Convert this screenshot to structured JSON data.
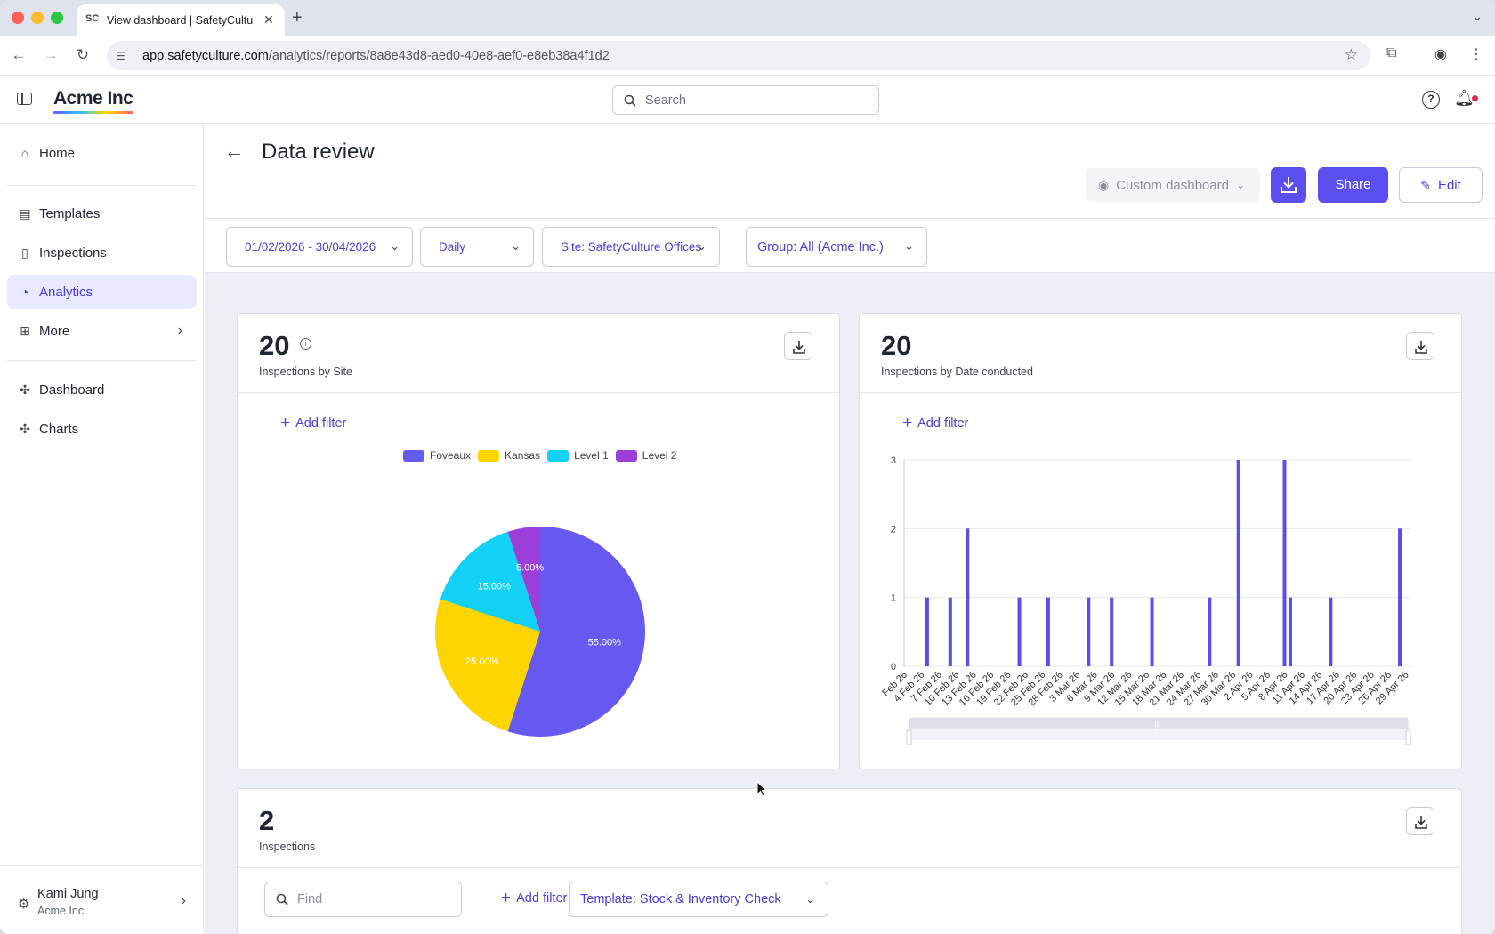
{
  "browser": {
    "tab_title": "View dashboard | SafetyCultu",
    "tab_favicon": "SC",
    "url_host": "app.safetyculture.com",
    "url_path": "/analytics/reports/8a8e43d8-aed0-40e8-aef0-e8eb38a4f1d2"
  },
  "header": {
    "brand": "Acme Inc",
    "search_placeholder": "Search"
  },
  "sidebar": {
    "items": [
      {
        "label": "Home",
        "icon": "home-icon"
      },
      {
        "label": "Templates",
        "icon": "templates-icon"
      },
      {
        "label": "Inspections",
        "icon": "clipboard-icon"
      },
      {
        "label": "Analytics",
        "icon": "analytics-icon",
        "active": true
      },
      {
        "label": "More",
        "icon": "grid-icon"
      },
      {
        "label": "Dashboard",
        "icon": "puzzle-icon"
      },
      {
        "label": "Charts",
        "icon": "puzzle-icon"
      }
    ],
    "user": {
      "name": "Kami Jung",
      "org": "Acme Inc."
    }
  },
  "page": {
    "title": "Data review",
    "custom_dashboard": "Custom dashboard",
    "share_label": "Share",
    "edit_label": "Edit"
  },
  "filters": {
    "date_range": "01/02/2026 - 30/04/2026",
    "interval": "Daily",
    "site": "Site: SafetyCulture Offices",
    "group": "Group: All (Acme Inc.)"
  },
  "cards": {
    "by_site": {
      "count": "20",
      "subtitle": "Inspections by Site",
      "add_filter": "Add filter"
    },
    "by_date": {
      "count": "20",
      "subtitle": "Inspections by Date conducted",
      "add_filter": "Add filter"
    },
    "inspections": {
      "count": "2",
      "subtitle": "Inspections",
      "find_placeholder": "Find",
      "add_filter": "Add filter",
      "template": "Template: Stock & Inventory Check"
    }
  },
  "colors": {
    "accent": "#5a4fee",
    "foveaux": "#6559ef",
    "kansas": "#ffd500",
    "level1": "#13d1f6",
    "level2": "#9b3fd9"
  },
  "chart_data": [
    {
      "type": "pie",
      "series": [
        {
          "name": "Foveaux",
          "value": 55.0,
          "label": "55.00%"
        },
        {
          "name": "Kansas",
          "value": 25.0,
          "label": "25.00%"
        },
        {
          "name": "Level 1",
          "value": 15.0,
          "label": "15.00%"
        },
        {
          "name": "Level 2",
          "value": 5.0,
          "label": "5.00%"
        }
      ],
      "legend": "top-center"
    },
    {
      "type": "bar",
      "ylim": [
        0,
        3
      ],
      "yticks": [
        "0",
        "1",
        "2",
        "3"
      ],
      "xticks": [
        "Feb 26",
        "4 Feb 26",
        "7 Feb 26",
        "10 Feb 26",
        "13 Feb 26",
        "16 Feb 26",
        "19 Feb 26",
        "22 Feb 26",
        "25 Feb 26",
        "28 Feb 26",
        "3 Mar 26",
        "6 Mar 26",
        "9 Mar 26",
        "12 Mar 26",
        "15 Mar 26",
        "18 Mar 26",
        "21 Mar 26",
        "24 Mar 26",
        "27 Mar 26",
        "30 Mar 26",
        "2 Apr 26",
        "5 Apr 26",
        "8 Apr 26",
        "11 Apr 26",
        "14 Apr 26",
        "17 Apr 26",
        "20 Apr 26",
        "23 Apr 26",
        "26 Apr 26",
        "29 Apr 26"
      ],
      "x": [
        "2026-02-05",
        "2026-02-09",
        "2026-02-12",
        "2026-02-21",
        "2026-02-26",
        "2026-03-05",
        "2026-03-09",
        "2026-03-16",
        "2026-03-26",
        "2026-03-31",
        "2026-04-08",
        "2026-04-09",
        "2026-04-16",
        "2026-04-28"
      ],
      "values": [
        1,
        1,
        2,
        1,
        1,
        1,
        1,
        1,
        1,
        3,
        3,
        1,
        1,
        2
      ],
      "grid": true
    }
  ]
}
